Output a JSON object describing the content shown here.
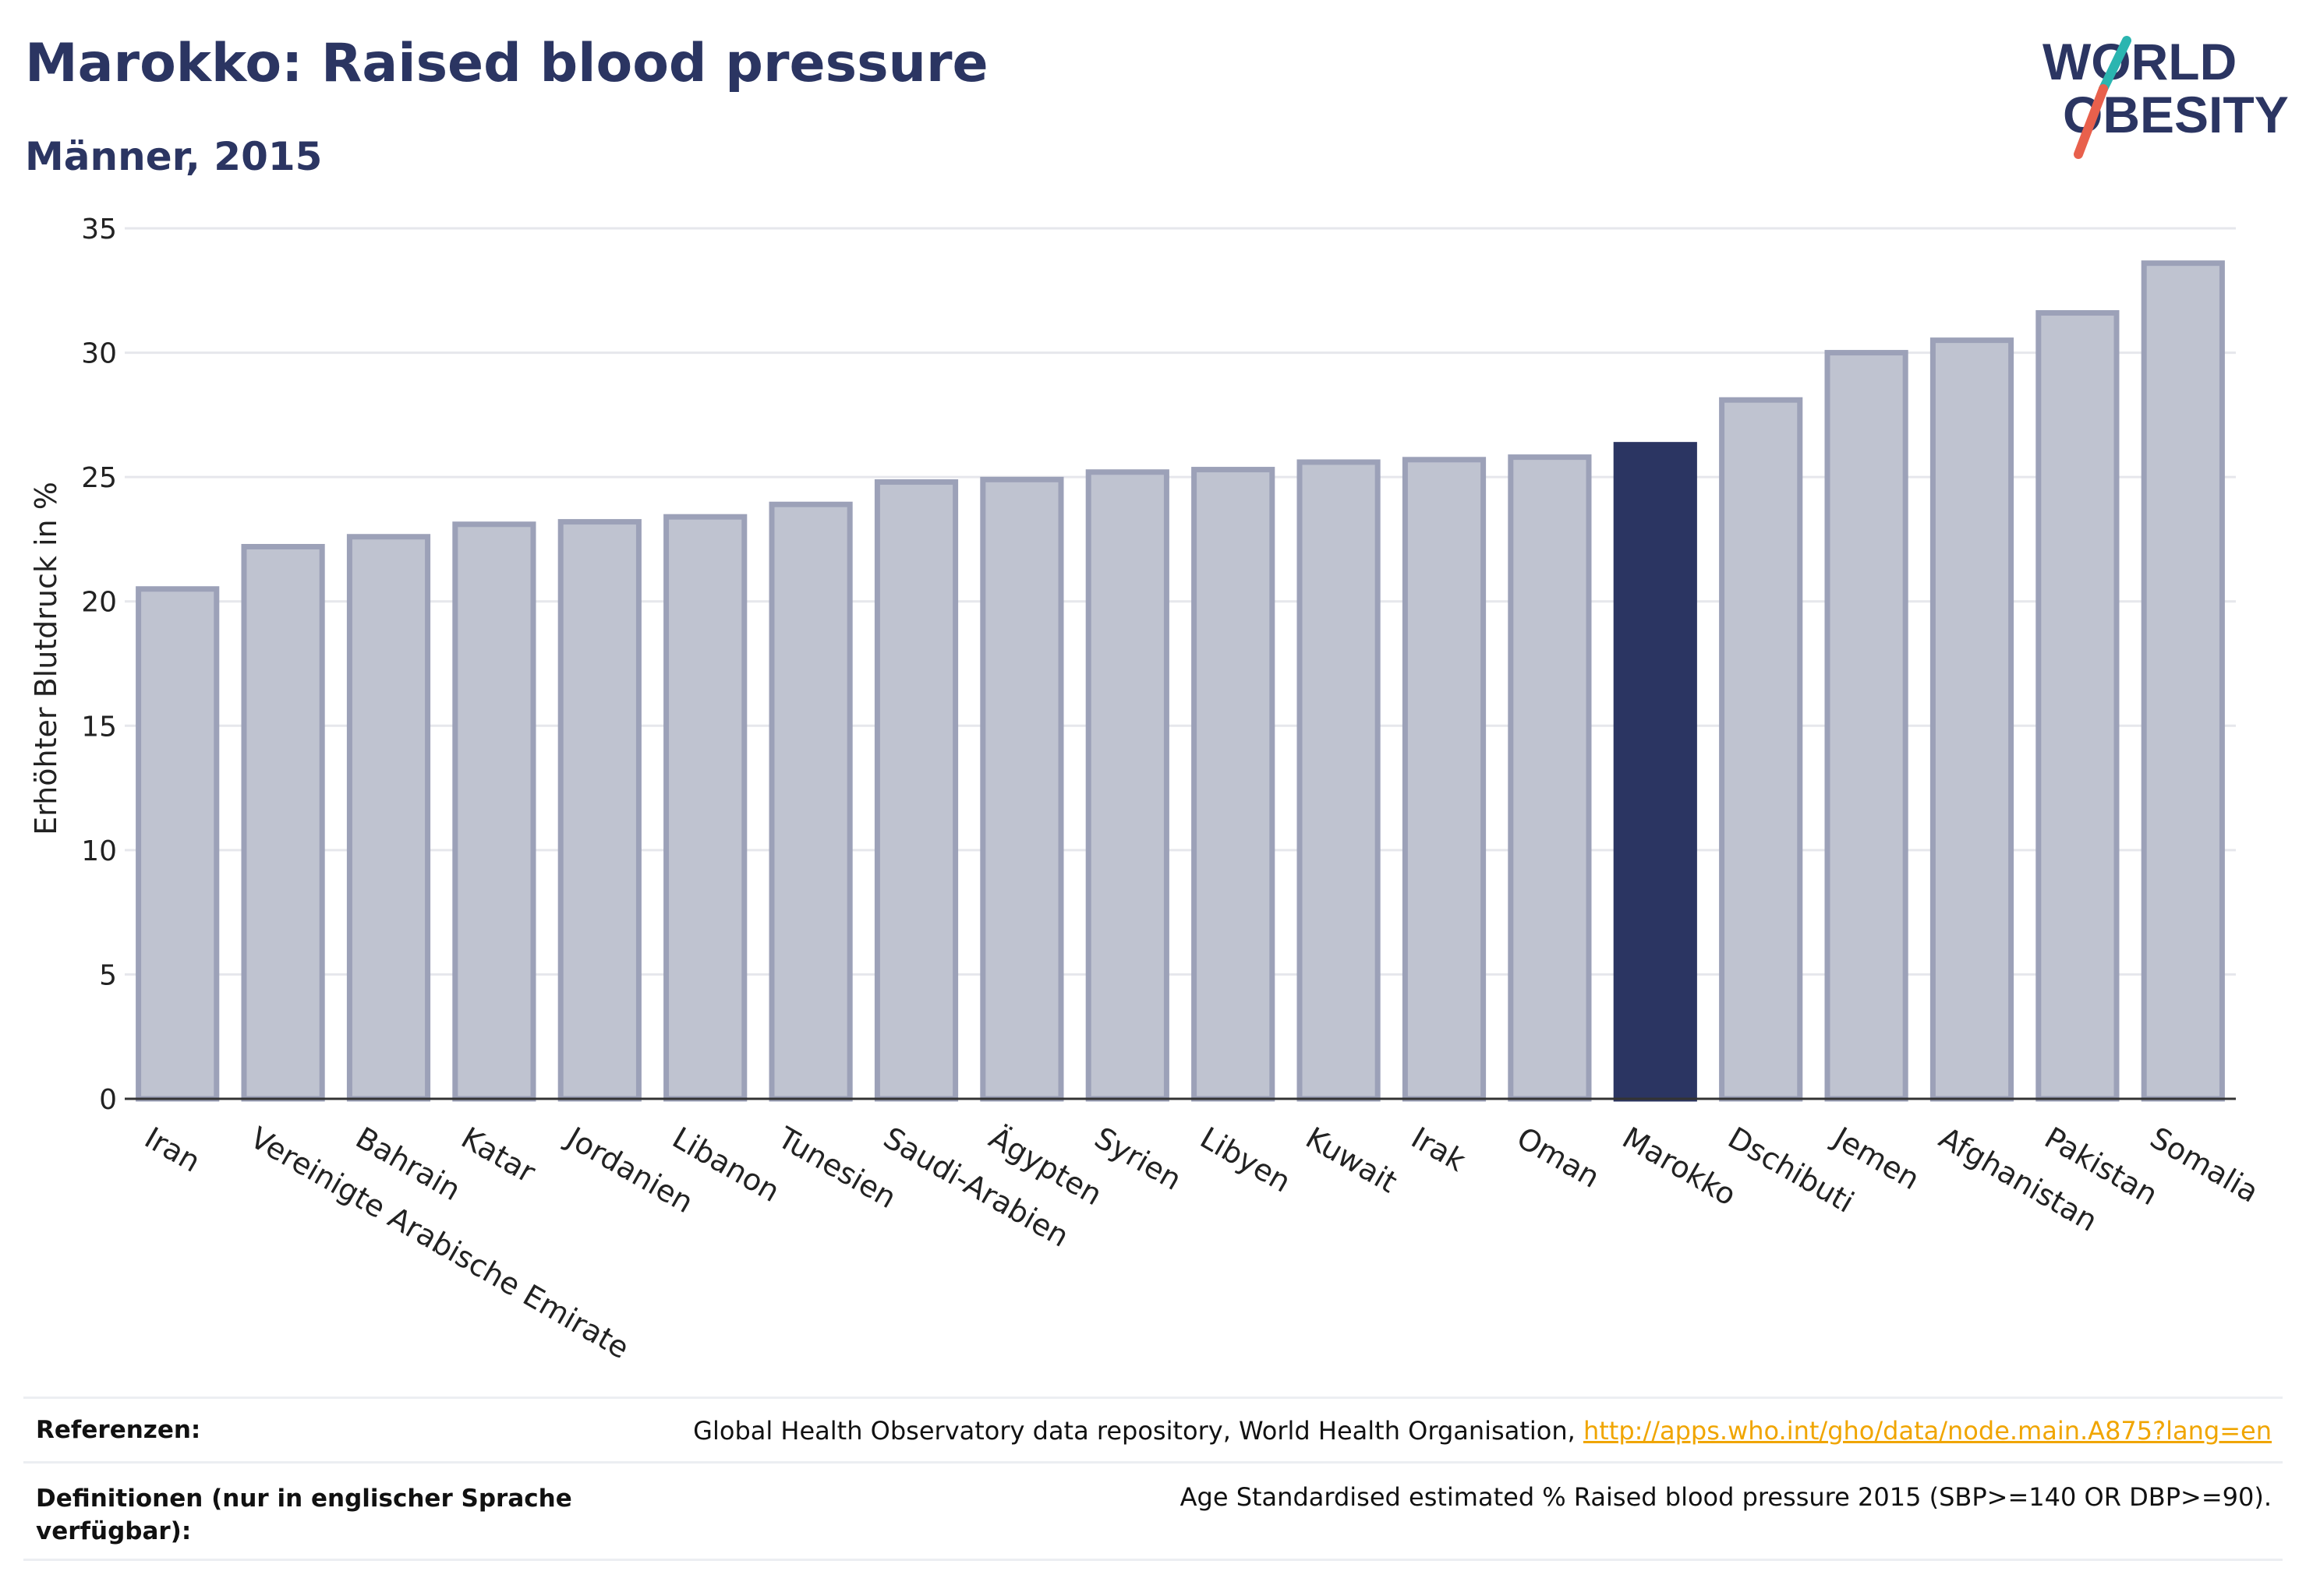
{
  "header": {
    "title": "Marokko: Raised blood pressure",
    "subtitle": "Männer, 2015"
  },
  "logo": {
    "line1": "WORLD",
    "line2": "OBESITY",
    "colors": {
      "text": "#2b3562",
      "slash_teal": "#2bb5b0",
      "slash_red": "#e8604c"
    }
  },
  "chart_data": {
    "type": "bar",
    "ylabel": "Erhöhter Blutdruck in %",
    "xlabel": "",
    "ylim": [
      0,
      35
    ],
    "yticks": [
      0,
      5,
      10,
      15,
      20,
      25,
      30,
      35
    ],
    "grid": true,
    "categories": [
      "Iran",
      "Vereinigte Arabische Emirate",
      "Bahrain",
      "Katar",
      "Jordanien",
      "Libanon",
      "Tunesien",
      "Saudi-Arabien",
      "Ägypten",
      "Syrien",
      "Libyen",
      "Kuwait",
      "Irak",
      "Oman",
      "Marokko",
      "Dschibuti",
      "Jemen",
      "Afghanistan",
      "Pakistan",
      "Somalia"
    ],
    "values": [
      20.5,
      22.2,
      22.6,
      23.1,
      23.2,
      23.4,
      23.9,
      24.8,
      24.9,
      25.2,
      25.3,
      25.6,
      25.7,
      25.8,
      26.3,
      28.1,
      30.0,
      30.5,
      31.6,
      33.6
    ],
    "highlight": "Marokko",
    "colors": {
      "bar": "#bfc3d0",
      "bar_border": "#9ca1b8",
      "highlight": "#2b3562"
    }
  },
  "references": {
    "ref_label": "Referenzen:",
    "ref_text": "Global Health Observatory data repository, World Health Organisation, ",
    "ref_link": "http://apps.who.int/gho/data/node.main.A875?lang=en",
    "def_label": "Definitionen (nur in englischer Sprache verfügbar):",
    "def_text": "Age Standardised estimated % Raised blood pressure 2015 (SBP>=140 OR DBP>=90)."
  }
}
